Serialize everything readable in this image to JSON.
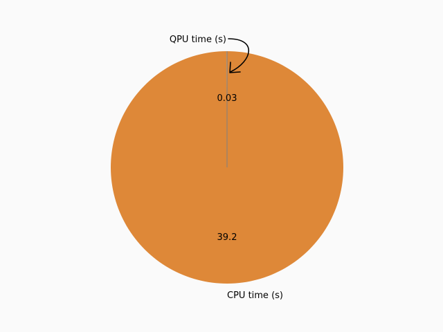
{
  "chart_data": {
    "type": "pie",
    "title": "",
    "labels": [
      "QPU time (s)",
      "CPU time (s)"
    ],
    "values": [
      0.03,
      39.2
    ],
    "value_labels": [
      "0.03",
      "39.2"
    ],
    "colors": [
      "#7f7f7f",
      "#de8838"
    ],
    "start_angle_deg": 90,
    "direction": "counterclockwise",
    "annotation_arrow": "curved arrow from QPU label to QPU slice"
  },
  "background": "#fafafa"
}
